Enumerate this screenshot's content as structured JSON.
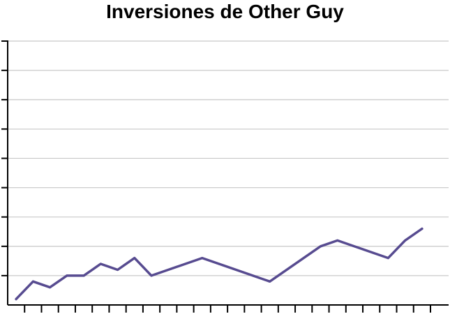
{
  "colors": {
    "line": "#574b90",
    "grid": "#c8c8c8",
    "axis": "#000000"
  },
  "chart_data": {
    "type": "line",
    "title": "Inversiones de Other Guy",
    "xlabel": "",
    "ylabel": "",
    "grid": true,
    "legend": "none",
    "xlim": [
      0,
      25
    ],
    "ylim": [
      0,
      9
    ],
    "x_ticks": 25,
    "y_ticks": 9,
    "series": [
      {
        "values": [
          {
            "x": 0.5,
            "y": 0.2
          },
          {
            "x": 1.5,
            "y": 0.8
          },
          {
            "x": 2.5,
            "y": 0.6
          },
          {
            "x": 3.5,
            "y": 1.0
          },
          {
            "x": 4.5,
            "y": 1.0
          },
          {
            "x": 5.5,
            "y": 1.4
          },
          {
            "x": 6.5,
            "y": 1.2
          },
          {
            "x": 7.5,
            "y": 1.6
          },
          {
            "x": 8.5,
            "y": 1.0
          },
          {
            "x": 11.5,
            "y": 1.6
          },
          {
            "x": 15.5,
            "y": 0.8
          },
          {
            "x": 18.5,
            "y": 2.0
          },
          {
            "x": 19.5,
            "y": 2.2
          },
          {
            "x": 22.5,
            "y": 1.6
          },
          {
            "x": 23.5,
            "y": 2.2
          },
          {
            "x": 24.5,
            "y": 2.6
          }
        ]
      }
    ]
  }
}
